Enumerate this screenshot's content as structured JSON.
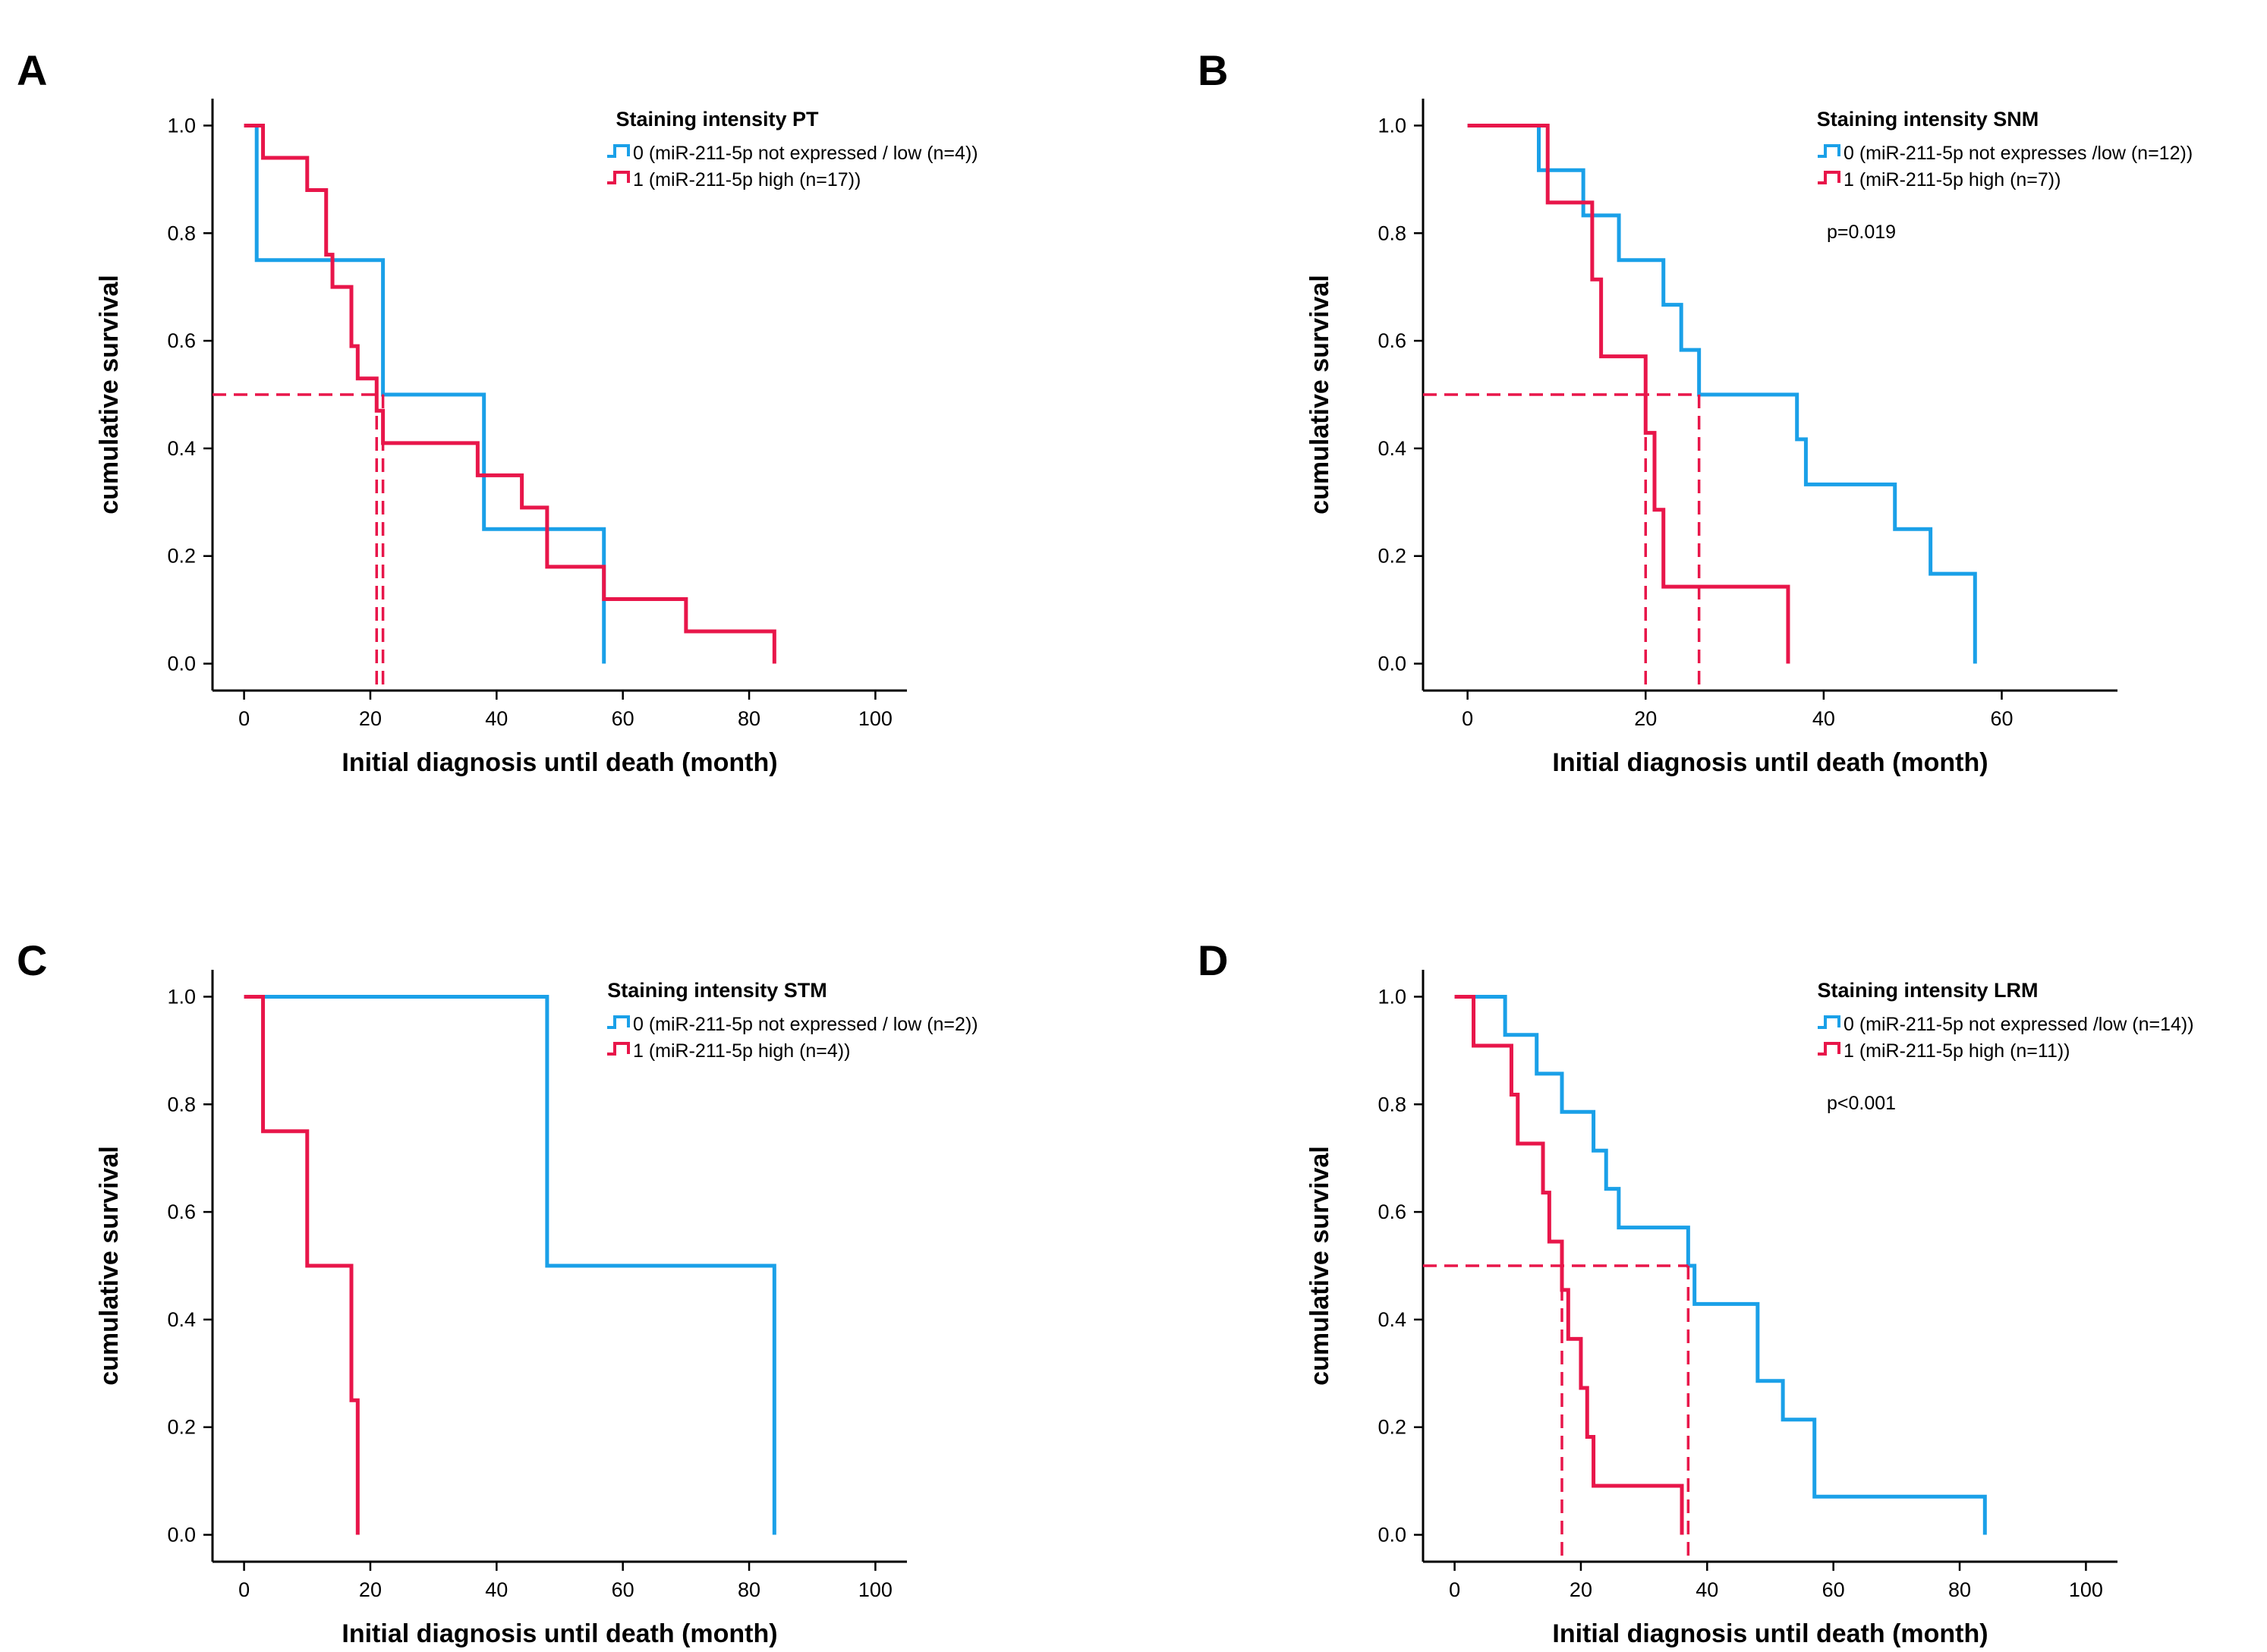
{
  "colors": {
    "group0": "#1aa0e8",
    "group1": "#e8164a",
    "median_line": "#e8164a",
    "axis": "#000000"
  },
  "chart_data": [
    {
      "panel": "A",
      "type": "line",
      "subtype": "kaplan-meier",
      "xlabel": "Initial diagnosis until death (month)",
      "ylabel": "cumulative survival",
      "xlim": [
        -5,
        105
      ],
      "ylim": [
        -0.05,
        1.05
      ],
      "x_ticks": [
        0,
        20,
        40,
        60,
        80,
        100
      ],
      "y_ticks": [
        0.0,
        0.2,
        0.4,
        0.6,
        0.8,
        1.0
      ],
      "legend_title": "Staining intensity PT",
      "p_value": null,
      "series": [
        {
          "name": "0 (miR-211-5p not expressed / low (n=4))",
          "group": 0,
          "steps": [
            [
              0,
              1.0
            ],
            [
              2,
              0.75
            ],
            [
              22,
              0.5
            ],
            [
              38,
              0.25
            ],
            [
              57,
              0.0
            ]
          ]
        },
        {
          "name": "1 (miR-211-5p high (n=17))",
          "group": 1,
          "steps": [
            [
              0,
              1.0
            ],
            [
              3,
              0.94
            ],
            [
              10,
              0.88
            ],
            [
              13,
              0.76
            ],
            [
              14,
              0.7
            ],
            [
              17,
              0.59
            ],
            [
              18,
              0.53
            ],
            [
              21,
              0.47
            ],
            [
              22,
              0.41
            ],
            [
              37,
              0.35
            ],
            [
              44,
              0.29
            ],
            [
              48,
              0.18
            ],
            [
              57,
              0.12
            ],
            [
              70,
              0.06
            ],
            [
              84,
              0.0
            ]
          ]
        }
      ],
      "median_lines": {
        "y": 0.5,
        "x": [
          21,
          22
        ]
      }
    },
    {
      "panel": "B",
      "type": "line",
      "subtype": "kaplan-meier",
      "xlabel": "Initial diagnosis until death (month)",
      "ylabel": "cumulative survival",
      "xlim": [
        -5,
        73
      ],
      "ylim": [
        -0.05,
        1.05
      ],
      "x_ticks": [
        0,
        20,
        40,
        60
      ],
      "y_ticks": [
        0.0,
        0.2,
        0.4,
        0.6,
        0.8,
        1.0
      ],
      "legend_title": "Staining intensity SNM",
      "p_value": "p=0.019",
      "series": [
        {
          "name": "0 (miR-211-5p not expresses /low (n=12))",
          "group": 0,
          "steps": [
            [
              0,
              1.0
            ],
            [
              8,
              0.917
            ],
            [
              13,
              0.833
            ],
            [
              17,
              0.75
            ],
            [
              22,
              0.667
            ],
            [
              24,
              0.583
            ],
            [
              26,
              0.5
            ],
            [
              37,
              0.417
            ],
            [
              38,
              0.333
            ],
            [
              48,
              0.25
            ],
            [
              52,
              0.167
            ],
            [
              57,
              0.0
            ]
          ]
        },
        {
          "name": "1 (miR-211-5p high (n=7))",
          "group": 1,
          "steps": [
            [
              0,
              1.0
            ],
            [
              9,
              0.857
            ],
            [
              14,
              0.714
            ],
            [
              15,
              0.571
            ],
            [
              20,
              0.429
            ],
            [
              21,
              0.286
            ],
            [
              22,
              0.143
            ],
            [
              36,
              0.0
            ]
          ]
        }
      ],
      "median_lines": {
        "y": 0.5,
        "x": [
          20,
          26
        ]
      }
    },
    {
      "panel": "C",
      "type": "line",
      "subtype": "kaplan-meier",
      "xlabel": "Initial diagnosis until death (month)",
      "ylabel": "cumulative survival",
      "xlim": [
        -5,
        105
      ],
      "ylim": [
        -0.05,
        1.05
      ],
      "x_ticks": [
        0,
        20,
        40,
        60,
        80,
        100
      ],
      "y_ticks": [
        0.0,
        0.2,
        0.4,
        0.6,
        0.8,
        1.0
      ],
      "legend_title": "Staining intensity STM",
      "p_value": null,
      "series": [
        {
          "name": "0 (miR-211-5p not expressed / low (n=2))",
          "group": 0,
          "steps": [
            [
              0,
              1.0
            ],
            [
              48,
              0.5
            ],
            [
              84,
              0.0
            ]
          ]
        },
        {
          "name": "1 (miR-211-5p high (n=4))",
          "group": 1,
          "steps": [
            [
              0,
              1.0
            ],
            [
              3,
              0.75
            ],
            [
              10,
              0.5
            ],
            [
              17,
              0.25
            ],
            [
              18,
              0.0
            ]
          ]
        }
      ],
      "median_lines": null
    },
    {
      "panel": "D",
      "type": "line",
      "subtype": "kaplan-meier",
      "xlabel": "Initial diagnosis until death (month)",
      "ylabel": "cumulative survival",
      "xlim": [
        -5,
        105
      ],
      "ylim": [
        -0.05,
        1.05
      ],
      "x_ticks": [
        0,
        20,
        40,
        60,
        80,
        100
      ],
      "y_ticks": [
        0.0,
        0.2,
        0.4,
        0.6,
        0.8,
        1.0
      ],
      "legend_title": "Staining intensity LRM",
      "p_value": "p<0.001",
      "series": [
        {
          "name": "0 (miR-211-5p not expressed /low (n=14))",
          "group": 0,
          "steps": [
            [
              0,
              1.0
            ],
            [
              8,
              0.929
            ],
            [
              13,
              0.857
            ],
            [
              17,
              0.786
            ],
            [
              22,
              0.714
            ],
            [
              24,
              0.643
            ],
            [
              26,
              0.571
            ],
            [
              37,
              0.5
            ],
            [
              38,
              0.429
            ],
            [
              48,
              0.286
            ],
            [
              52,
              0.214
            ],
            [
              57,
              0.071
            ],
            [
              84,
              0.0
            ]
          ]
        },
        {
          "name": "1 (miR-211-5p high (n=11))",
          "group": 1,
          "steps": [
            [
              0,
              1.0
            ],
            [
              3,
              0.909
            ],
            [
              9,
              0.818
            ],
            [
              10,
              0.727
            ],
            [
              14,
              0.636
            ],
            [
              15,
              0.545
            ],
            [
              17,
              0.455
            ],
            [
              18,
              0.364
            ],
            [
              20,
              0.273
            ],
            [
              21,
              0.182
            ],
            [
              22,
              0.091
            ],
            [
              36,
              0.0
            ]
          ]
        }
      ],
      "median_lines": {
        "y": 0.5,
        "x": [
          17,
          37
        ]
      }
    }
  ]
}
